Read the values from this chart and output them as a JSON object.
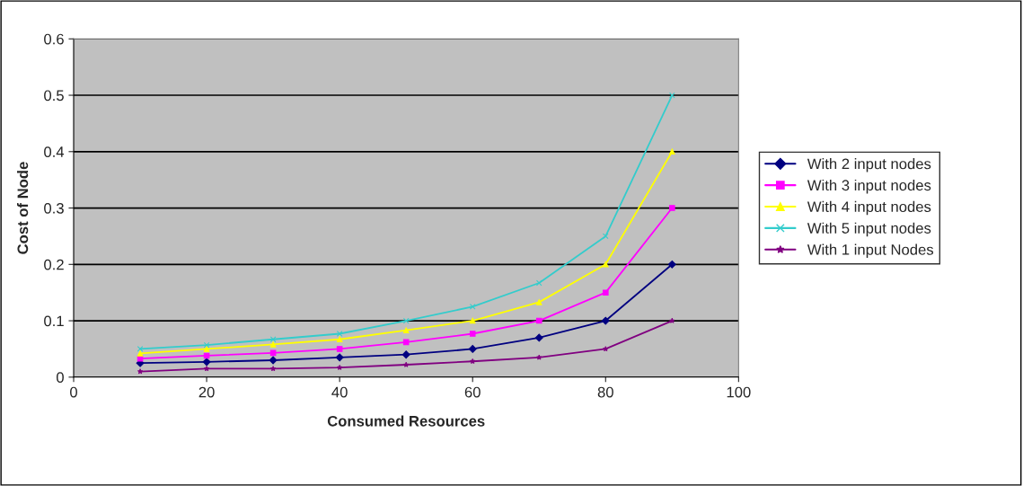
{
  "chart_data": {
    "type": "line",
    "xlabel": "Consumed Resources",
    "ylabel": "Cost of Node",
    "x": [
      10,
      20,
      30,
      40,
      50,
      60,
      70,
      80,
      90
    ],
    "series": [
      {
        "name": "With 2 input nodes",
        "color": "#000080",
        "marker": "diamond",
        "values": [
          0.025,
          0.027,
          0.03,
          0.035,
          0.04,
          0.05,
          0.07,
          0.1,
          0.2
        ]
      },
      {
        "name": "With 3 input nodes",
        "color": "#ff00ff",
        "marker": "square",
        "values": [
          0.033,
          0.038,
          0.043,
          0.05,
          0.062,
          0.077,
          0.1,
          0.15,
          0.3
        ]
      },
      {
        "name": "With 4 input nodes",
        "color": "#ffff00",
        "marker": "triangle",
        "values": [
          0.042,
          0.05,
          0.058,
          0.067,
          0.083,
          0.1,
          0.133,
          0.2,
          0.4
        ]
      },
      {
        "name": "With 5 input nodes",
        "color": "#33cccc",
        "marker": "cross",
        "values": [
          0.05,
          0.057,
          0.067,
          0.077,
          0.1,
          0.125,
          0.167,
          0.25,
          0.5
        ]
      },
      {
        "name": "With 1 input Nodes",
        "color": "#800080",
        "marker": "star",
        "values": [
          0.01,
          0.015,
          0.015,
          0.017,
          0.022,
          0.028,
          0.035,
          0.05,
          0.1
        ]
      }
    ],
    "xlim": [
      0,
      100
    ],
    "xticks": [
      0,
      20,
      40,
      60,
      80,
      100
    ],
    "ylim": [
      0,
      0.6
    ],
    "yticks": [
      0,
      0.1,
      0.2,
      0.3,
      0.4,
      0.5,
      0.6
    ],
    "grid": "y",
    "legend": "right"
  }
}
